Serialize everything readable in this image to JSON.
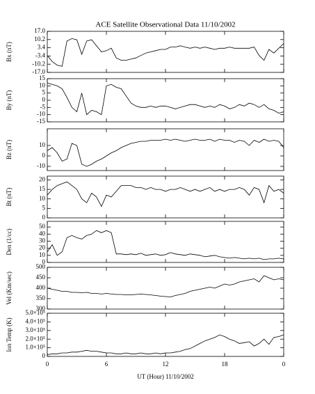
{
  "chart_data": [
    {
      "type": "line",
      "title": "ACE Satellite Observational Data   11/10/2002",
      "ylabel": "Bx (nT)",
      "x": [
        0,
        0.5,
        1,
        1.5,
        2,
        2.5,
        3,
        3.5,
        4,
        4.5,
        5,
        5.5,
        6,
        6.5,
        7,
        7.5,
        8,
        8.5,
        9,
        9.5,
        10,
        10.5,
        11,
        11.5,
        12,
        12.5,
        13,
        13.5,
        14,
        14.5,
        15,
        15.5,
        16,
        16.5,
        17,
        17.5,
        18,
        18.5,
        19,
        19.5,
        20,
        20.5,
        21,
        21.5,
        22,
        22.5,
        23,
        23.5,
        24
      ],
      "values": [
        -3,
        -8,
        -11,
        -12,
        9,
        11,
        10,
        -2,
        9,
        10,
        5,
        0,
        1,
        3,
        -5,
        -7,
        -7,
        -6,
        -5,
        -3,
        -1,
        0,
        1,
        2,
        2,
        4,
        4,
        5,
        4,
        3,
        4,
        3,
        4,
        3,
        2,
        3,
        3,
        4,
        3,
        3,
        3,
        3,
        4,
        -3,
        -7,
        2,
        -1,
        3,
        7
      ],
      "color": "#000000",
      "xlim": [
        0,
        24
      ],
      "ylim": [
        -17,
        17
      ],
      "yticks": [
        {
          "value": 17,
          "label": "17.0"
        },
        {
          "value": 10.2,
          "label": "10.2"
        },
        {
          "value": 3.4,
          "label": "3.4"
        },
        {
          "value": -3.4,
          "label": "-3.4"
        },
        {
          "value": -10.2,
          "label": "-10.2"
        },
        {
          "value": -17,
          "label": "-17.0"
        }
      ]
    },
    {
      "type": "line",
      "ylabel": "By (nT)",
      "x": [
        0,
        0.5,
        1,
        1.5,
        2,
        2.5,
        3,
        3.5,
        4,
        4.5,
        5,
        5.5,
        6,
        6.5,
        7,
        7.5,
        8,
        8.5,
        9,
        9.5,
        10,
        10.5,
        11,
        11.5,
        12,
        12.5,
        13,
        13.5,
        14,
        14.5,
        15,
        15.5,
        16,
        16.5,
        17,
        17.5,
        18,
        18.5,
        19,
        19.5,
        20,
        20.5,
        21,
        21.5,
        22,
        22.5,
        23,
        23.5,
        24
      ],
      "values": [
        12,
        11,
        10,
        8,
        2,
        -5,
        -8,
        5,
        -10,
        -7,
        -8,
        -10,
        10,
        11,
        9,
        8,
        3,
        -2,
        -4,
        -5,
        -5,
        -4,
        -5,
        -4,
        -4,
        -5,
        -6,
        -5,
        -4,
        -3,
        -3,
        -4,
        -5,
        -4,
        -5,
        -3,
        -4,
        -6,
        -5,
        -3,
        -4,
        -2,
        -3,
        -5,
        -3,
        -6,
        -7,
        -9,
        -8
      ],
      "color": "#000000",
      "xlim": [
        0,
        24
      ],
      "ylim": [
        -15,
        15
      ],
      "yticks": [
        15,
        10,
        5,
        0,
        -5,
        -10,
        -15
      ]
    },
    {
      "type": "line",
      "ylabel": "Bz (nT)",
      "x": [
        0,
        0.5,
        1,
        1.5,
        2,
        2.5,
        3,
        3.5,
        4,
        4.5,
        5,
        5.5,
        6,
        6.5,
        7,
        7.5,
        8,
        8.5,
        9,
        9.5,
        10,
        10.5,
        11,
        11.5,
        12,
        12.5,
        13,
        13.5,
        14,
        14.5,
        15,
        15.5,
        16,
        16.5,
        17,
        17.5,
        18,
        18.5,
        19,
        19.5,
        20,
        20.5,
        21,
        21.5,
        22,
        22.5,
        23,
        23.5,
        24
      ],
      "values": [
        5,
        8,
        3,
        -5,
        -3,
        12,
        10,
        -8,
        -10,
        -8,
        -5,
        -3,
        0,
        3,
        5,
        8,
        10,
        12,
        13,
        14,
        14,
        15,
        15,
        15,
        16,
        15,
        16,
        15,
        14,
        15,
        16,
        15,
        15,
        16,
        14,
        16,
        15,
        15,
        13,
        15,
        14,
        10,
        15,
        13,
        16,
        14,
        15,
        14,
        8
      ],
      "color": "#000000",
      "xlim": [
        0,
        24
      ],
      "ylim": [
        -14,
        26
      ],
      "yticks": [
        10,
        0,
        -10
      ]
    },
    {
      "type": "line",
      "ylabel": "Bt (nT)",
      "x": [
        0,
        0.5,
        1,
        1.5,
        2,
        2.5,
        3,
        3.5,
        4,
        4.5,
        5,
        5.5,
        6,
        6.5,
        7,
        7.5,
        8,
        8.5,
        9,
        9.5,
        10,
        10.5,
        11,
        11.5,
        12,
        12.5,
        13,
        13.5,
        14,
        14.5,
        15,
        15.5,
        16,
        16.5,
        17,
        17.5,
        18,
        18.5,
        19,
        19.5,
        20,
        20.5,
        21,
        21.5,
        22,
        22.5,
        23,
        23.5,
        24
      ],
      "values": [
        12,
        15,
        17,
        18,
        19,
        17,
        15,
        10,
        8,
        13,
        11,
        6,
        12,
        11,
        14,
        17,
        17,
        17,
        16,
        16,
        15,
        16,
        15,
        15,
        14,
        15,
        15,
        16,
        15,
        14,
        15,
        14,
        15,
        16,
        14,
        15,
        14,
        15,
        15,
        16,
        15,
        12,
        16,
        15,
        8,
        17,
        14,
        15,
        13
      ],
      "color": "#000000",
      "xlim": [
        0,
        24
      ],
      "ylim": [
        0,
        22
      ],
      "yticks": [
        20,
        15,
        10,
        5,
        0
      ]
    },
    {
      "type": "line",
      "ylabel": "Den (1/cc)",
      "x": [
        0,
        0.5,
        1,
        1.5,
        2,
        2.5,
        3,
        3.5,
        4,
        4.5,
        5,
        5.5,
        6,
        6.5,
        7,
        7.5,
        8,
        8.5,
        9,
        9.5,
        10,
        10.5,
        11,
        11.5,
        12,
        12.5,
        13,
        13.5,
        14,
        14.5,
        15,
        15.5,
        16,
        16.5,
        17,
        17.5,
        18,
        18.5,
        19,
        19.5,
        20,
        20.5,
        21,
        21.5,
        22,
        22.5,
        23,
        23.5,
        24
      ],
      "values": [
        15,
        25,
        10,
        15,
        35,
        38,
        35,
        33,
        38,
        40,
        45,
        42,
        45,
        42,
        12,
        12,
        11,
        12,
        11,
        13,
        10,
        11,
        12,
        10,
        11,
        14,
        12,
        11,
        10,
        12,
        11,
        10,
        8,
        9,
        10,
        8,
        7,
        6,
        7,
        6,
        5,
        6,
        5,
        6,
        4,
        5,
        5,
        6,
        5
      ],
      "color": "#000000",
      "xlim": [
        0,
        24
      ],
      "ylim": [
        0,
        58
      ],
      "yticks": [
        50,
        40,
        30,
        20,
        10,
        0
      ]
    },
    {
      "type": "line",
      "ylabel": "Vel (Km/sec)",
      "x": [
        0,
        0.5,
        1,
        1.5,
        2,
        2.5,
        3,
        3.5,
        4,
        4.5,
        5,
        5.5,
        6,
        6.5,
        7,
        7.5,
        8,
        8.5,
        9,
        9.5,
        10,
        10.5,
        11,
        11.5,
        12,
        12.5,
        13,
        13.5,
        14,
        14.5,
        15,
        15.5,
        16,
        16.5,
        17,
        17.5,
        18,
        18.5,
        19,
        19.5,
        20,
        20.5,
        21,
        21.5,
        22,
        22.5,
        23,
        23.5,
        24
      ],
      "values": [
        400,
        395,
        390,
        385,
        385,
        380,
        380,
        378,
        380,
        375,
        375,
        372,
        375,
        372,
        370,
        370,
        368,
        368,
        370,
        372,
        370,
        368,
        365,
        362,
        360,
        358,
        365,
        370,
        375,
        385,
        390,
        395,
        400,
        405,
        400,
        410,
        420,
        415,
        420,
        430,
        435,
        440,
        445,
        430,
        460,
        450,
        440,
        445,
        440
      ],
      "color": "#000000",
      "xlim": [
        0,
        24
      ],
      "ylim": [
        300,
        500
      ],
      "yticks": [
        500,
        450,
        400,
        350,
        300
      ]
    },
    {
      "type": "line",
      "ylabel": "Ion Temp (K)",
      "xlabel": "UT (Hour)  11/10/2002",
      "x": [
        0,
        0.5,
        1,
        1.5,
        2,
        2.5,
        3,
        3.5,
        4,
        4.5,
        5,
        5.5,
        6,
        6.5,
        7,
        7.5,
        8,
        8.5,
        9,
        9.5,
        10,
        10.5,
        11,
        11.5,
        12,
        12.5,
        13,
        13.5,
        14,
        14.5,
        15,
        15.5,
        16,
        16.5,
        17,
        17.5,
        18,
        18.5,
        19,
        19.5,
        20,
        20.5,
        21,
        21.5,
        22,
        22.5,
        23,
        23.5,
        24
      ],
      "values": [
        20000,
        30000,
        30000,
        40000,
        40000,
        50000,
        50000,
        60000,
        70000,
        60000,
        60000,
        50000,
        40000,
        40000,
        30000,
        30000,
        40000,
        30000,
        30000,
        40000,
        30000,
        30000,
        40000,
        30000,
        40000,
        40000,
        50000,
        60000,
        80000,
        90000,
        120000,
        150000,
        180000,
        200000,
        220000,
        250000,
        230000,
        200000,
        180000,
        150000,
        160000,
        170000,
        120000,
        150000,
        200000,
        140000,
        220000,
        230000,
        250000
      ],
      "color": "#000000",
      "xlim": [
        0,
        24
      ],
      "ylim": [
        0,
        500000
      ],
      "yticks": [
        {
          "value": 500000,
          "label": "5.0×10⁵"
        },
        {
          "value": 400000,
          "label": "4.0×10⁵"
        },
        {
          "value": 300000,
          "label": "3.0×10⁵"
        },
        {
          "value": 200000,
          "label": "2.0×10⁵"
        },
        {
          "value": 100000,
          "label": "1.0×10⁵"
        },
        0
      ],
      "xticks": [
        0,
        6,
        12,
        18,
        {
          "value": 24,
          "label": "0"
        }
      ]
    }
  ]
}
